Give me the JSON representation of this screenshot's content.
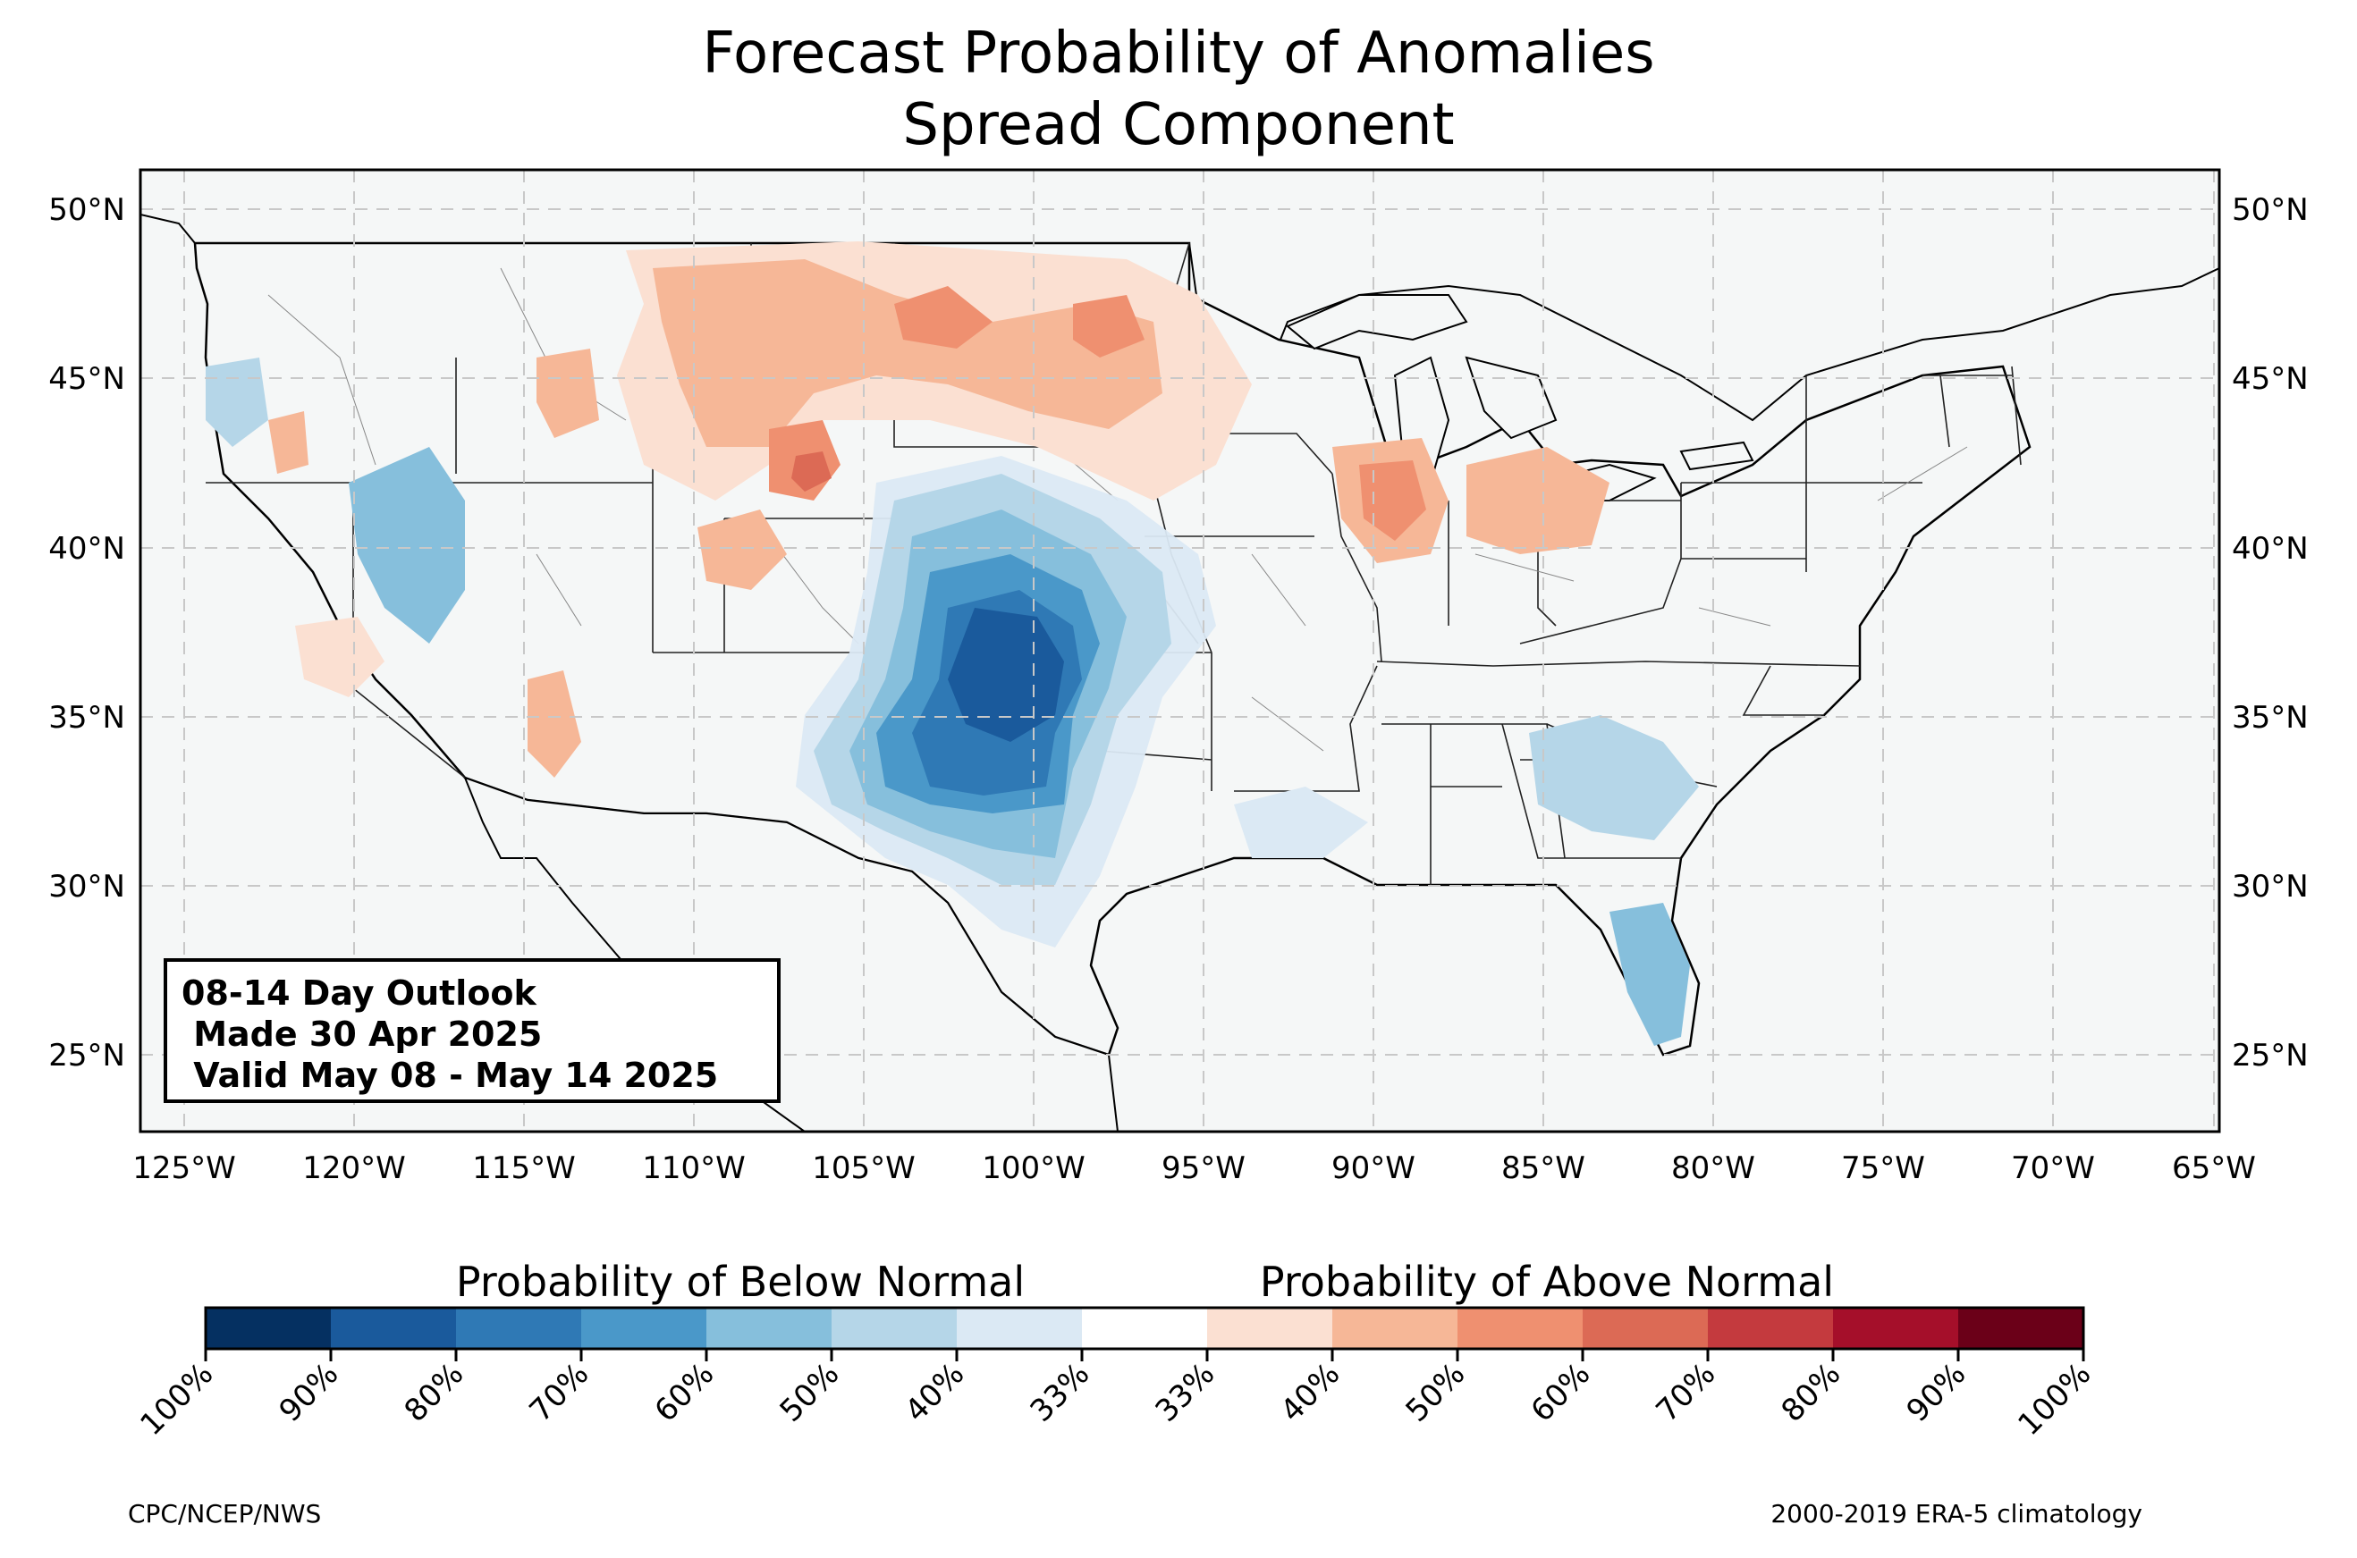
{
  "title_line1": "Forecast Probability of Anomalies",
  "title_line2": "Spread Component",
  "map": {
    "lat_ticks": [
      "50°N",
      "45°N",
      "40°N",
      "35°N",
      "30°N",
      "25°N"
    ],
    "lon_ticks": [
      "125°W",
      "120°W",
      "115°W",
      "110°W",
      "105°W",
      "100°W",
      "95°W",
      "90°W",
      "85°W",
      "80°W",
      "75°W",
      "70°W",
      "65°W"
    ],
    "lat_range": [
      22.8,
      51.2
    ],
    "lon_range": [
      -126.3,
      -65.1
    ],
    "grid": true,
    "colors": {
      "ocean": "#f5f7f7",
      "land_base": "#ffffff",
      "grid": "#c8c8c8"
    }
  },
  "infobox": {
    "line1": "08-14 Day Outlook",
    "line2": " Made 30 Apr 2025",
    "line3": " Valid May 08 - May 14 2025"
  },
  "colorbar": {
    "title_below": "Probability of Below Normal",
    "title_above": "Probability of Above Normal",
    "tick_labels": [
      "100%",
      "90%",
      "80%",
      "70%",
      "60%",
      "50%",
      "40%",
      "33%",
      "33%",
      "40%",
      "50%",
      "60%",
      "70%",
      "80%",
      "90%",
      "100%"
    ],
    "colors": [
      "#053061",
      "#1a5a9c",
      "#2f79b5",
      "#4a98c9",
      "#86bfdc",
      "#b5d6e8",
      "#dbe9f4",
      "#ffffff",
      "#fbe0d2",
      "#f6b797",
      "#ef9070",
      "#dc6a55",
      "#c43a3e",
      "#a50f2a",
      "#6b0018"
    ]
  },
  "footer_left": "CPC/NCEP/NWS",
  "footer_right": "2000-2019 ERA-5 climatology"
}
